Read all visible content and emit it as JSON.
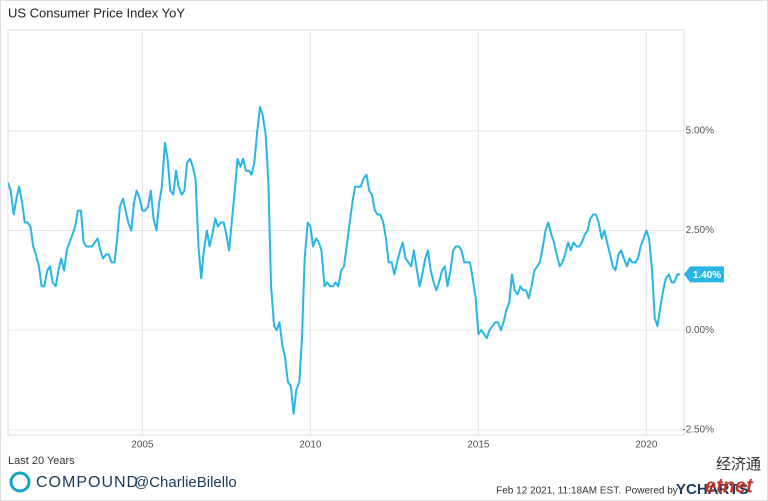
{
  "chart_data": {
    "type": "line",
    "title": "US Consumer Price Index YoY",
    "subtitle": "Last 20 Years",
    "grid": true,
    "xlim": [
      2001,
      2021.12
    ],
    "xticks": [
      2005,
      2010,
      2015,
      2020
    ],
    "ylim": [
      -2.63,
      7.53
    ],
    "yticks": [
      {
        "value": -2.5,
        "label": "-2.50%"
      },
      {
        "value": 0,
        "label": "0.00%"
      },
      {
        "value": 2.5,
        "label": "2.50%"
      },
      {
        "value": 5,
        "label": "5.00%"
      }
    ],
    "annotations": [
      {
        "text": "1.40%",
        "value": 1.4
      }
    ],
    "series": [
      {
        "name": "US Consumer Price Index YoY",
        "color": "#29b6e6",
        "x": [
          2001,
          2001.08,
          2001.17,
          2001.25,
          2001.33,
          2001.42,
          2001.5,
          2001.58,
          2001.67,
          2001.75,
          2001.83,
          2001.92,
          2002,
          2002.08,
          2002.17,
          2002.25,
          2002.33,
          2002.42,
          2002.5,
          2002.58,
          2002.67,
          2002.75,
          2002.83,
          2002.92,
          2003,
          2003.08,
          2003.17,
          2003.25,
          2003.33,
          2003.42,
          2003.5,
          2003.58,
          2003.67,
          2003.75,
          2003.83,
          2003.92,
          2004,
          2004.08,
          2004.17,
          2004.25,
          2004.33,
          2004.42,
          2004.5,
          2004.58,
          2004.67,
          2004.75,
          2004.83,
          2004.92,
          2005,
          2005.08,
          2005.17,
          2005.25,
          2005.33,
          2005.42,
          2005.5,
          2005.58,
          2005.67,
          2005.75,
          2005.83,
          2005.92,
          2006,
          2006.08,
          2006.17,
          2006.25,
          2006.33,
          2006.42,
          2006.5,
          2006.58,
          2006.67,
          2006.75,
          2006.83,
          2006.92,
          2007,
          2007.08,
          2007.17,
          2007.25,
          2007.33,
          2007.42,
          2007.5,
          2007.58,
          2007.67,
          2007.75,
          2007.83,
          2007.92,
          2008,
          2008.08,
          2008.17,
          2008.25,
          2008.33,
          2008.42,
          2008.5,
          2008.58,
          2008.67,
          2008.75,
          2008.83,
          2008.92,
          2009,
          2009.08,
          2009.17,
          2009.25,
          2009.33,
          2009.42,
          2009.5,
          2009.58,
          2009.67,
          2009.75,
          2009.83,
          2009.92,
          2010,
          2010.08,
          2010.17,
          2010.25,
          2010.33,
          2010.42,
          2010.5,
          2010.58,
          2010.67,
          2010.75,
          2010.83,
          2010.92,
          2011,
          2011.08,
          2011.17,
          2011.25,
          2011.33,
          2011.42,
          2011.5,
          2011.58,
          2011.67,
          2011.75,
          2011.83,
          2011.92,
          2012,
          2012.08,
          2012.17,
          2012.25,
          2012.33,
          2012.42,
          2012.5,
          2012.58,
          2012.67,
          2012.75,
          2012.83,
          2012.92,
          2013,
          2013.08,
          2013.17,
          2013.25,
          2013.33,
          2013.42,
          2013.5,
          2013.58,
          2013.67,
          2013.75,
          2013.83,
          2013.92,
          2014,
          2014.08,
          2014.17,
          2014.25,
          2014.33,
          2014.42,
          2014.5,
          2014.58,
          2014.67,
          2014.75,
          2014.83,
          2014.92,
          2015,
          2015.08,
          2015.17,
          2015.25,
          2015.33,
          2015.42,
          2015.5,
          2015.58,
          2015.67,
          2015.75,
          2015.83,
          2015.92,
          2016,
          2016.08,
          2016.17,
          2016.25,
          2016.33,
          2016.42,
          2016.5,
          2016.58,
          2016.67,
          2016.75,
          2016.83,
          2016.92,
          2017,
          2017.08,
          2017.17,
          2017.25,
          2017.33,
          2017.42,
          2017.5,
          2017.58,
          2017.67,
          2017.75,
          2017.83,
          2017.92,
          2018,
          2018.08,
          2018.17,
          2018.25,
          2018.33,
          2018.42,
          2018.5,
          2018.58,
          2018.67,
          2018.75,
          2018.83,
          2018.92,
          2019,
          2019.08,
          2019.17,
          2019.25,
          2019.33,
          2019.42,
          2019.5,
          2019.58,
          2019.67,
          2019.75,
          2019.83,
          2019.92,
          2020,
          2020.08,
          2020.17,
          2020.25,
          2020.33,
          2020.42,
          2020.5,
          2020.58,
          2020.67,
          2020.75,
          2020.83,
          2020.92,
          2021
        ],
        "values": [
          3.7,
          3.5,
          2.9,
          3.3,
          3.6,
          3.2,
          2.7,
          2.7,
          2.6,
          2.1,
          1.9,
          1.6,
          1.1,
          1.1,
          1.5,
          1.6,
          1.2,
          1.1,
          1.5,
          1.8,
          1.5,
          2.0,
          2.2,
          2.4,
          2.6,
          3.0,
          3.0,
          2.2,
          2.1,
          2.1,
          2.1,
          2.2,
          2.3,
          2.0,
          1.8,
          1.9,
          1.9,
          1.7,
          1.7,
          2.3,
          3.1,
          3.3,
          3.0,
          2.7,
          2.5,
          3.2,
          3.5,
          3.3,
          3.0,
          3.0,
          3.1,
          3.5,
          2.8,
          2.5,
          3.2,
          3.6,
          4.7,
          4.3,
          3.5,
          3.4,
          4.0,
          3.6,
          3.4,
          3.5,
          4.2,
          4.3,
          4.1,
          3.8,
          2.1,
          1.3,
          2.0,
          2.5,
          2.1,
          2.4,
          2.8,
          2.6,
          2.7,
          2.7,
          2.4,
          2.0,
          2.8,
          3.5,
          4.3,
          4.1,
          4.3,
          4.0,
          4.0,
          3.9,
          4.2,
          5.0,
          5.6,
          5.4,
          4.9,
          3.7,
          1.1,
          0.1,
          0.0,
          0.2,
          -0.4,
          -0.7,
          -1.3,
          -1.4,
          -2.1,
          -1.5,
          -1.3,
          -0.2,
          1.8,
          2.7,
          2.6,
          2.1,
          2.3,
          2.2,
          2.0,
          1.1,
          1.2,
          1.1,
          1.1,
          1.2,
          1.1,
          1.5,
          1.6,
          2.1,
          2.7,
          3.2,
          3.6,
          3.6,
          3.6,
          3.8,
          3.9,
          3.5,
          3.4,
          3.0,
          2.9,
          2.9,
          2.7,
          2.3,
          1.7,
          1.7,
          1.4,
          1.7,
          2.0,
          2.2,
          1.8,
          1.7,
          1.6,
          2.0,
          1.5,
          1.1,
          1.4,
          1.8,
          2.0,
          1.5,
          1.2,
          1.0,
          1.2,
          1.5,
          1.6,
          1.1,
          1.5,
          2.0,
          2.1,
          2.1,
          2.0,
          1.7,
          1.7,
          1.7,
          1.3,
          0.8,
          -0.1,
          0.0,
          -0.1,
          -0.2,
          0.0,
          0.1,
          0.2,
          0.2,
          0.0,
          0.2,
          0.5,
          0.7,
          1.4,
          1.0,
          0.9,
          1.1,
          1.0,
          1.0,
          0.8,
          1.1,
          1.5,
          1.6,
          1.7,
          2.1,
          2.5,
          2.7,
          2.4,
          2.2,
          1.9,
          1.6,
          1.7,
          1.9,
          2.2,
          2.0,
          2.2,
          2.1,
          2.1,
          2.2,
          2.4,
          2.5,
          2.8,
          2.9,
          2.9,
          2.7,
          2.3,
          2.5,
          2.2,
          1.9,
          1.6,
          1.5,
          1.9,
          2.0,
          1.8,
          1.6,
          1.8,
          1.7,
          1.7,
          1.8,
          2.1,
          2.3,
          2.5,
          2.3,
          1.5,
          0.3,
          0.1,
          0.6,
          1.0,
          1.3,
          1.4,
          1.2,
          1.2,
          1.4,
          1.4
        ]
      }
    ]
  },
  "footer": {
    "brand": "COMPOUND",
    "handle": "@CharlieBilello",
    "timestamp": "Feb 12 2021, 11:18AM EST.",
    "powered_by": "Powered by",
    "source": "YCHARTS",
    "watermark_cn": "经济通",
    "watermark_en": "etnet"
  }
}
